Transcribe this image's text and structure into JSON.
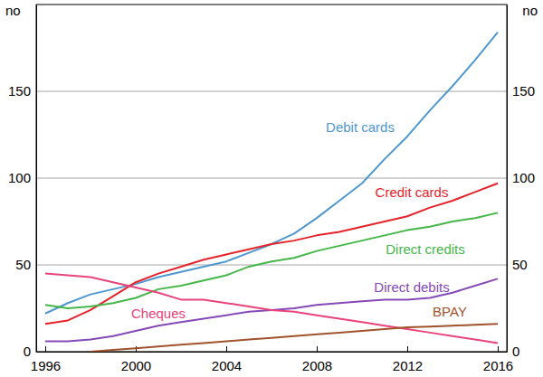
{
  "chart_data": {
    "type": "line",
    "y_label": "no",
    "x": [
      1996,
      1997,
      1998,
      1999,
      2000,
      2001,
      2002,
      2003,
      2004,
      2005,
      2006,
      2007,
      2008,
      2009,
      2010,
      2011,
      2012,
      2013,
      2014,
      2015,
      2016
    ],
    "xlim": [
      1995.6,
      2016.4
    ],
    "xticks": [
      1996,
      2000,
      2004,
      2008,
      2012,
      2016
    ],
    "ylim": [
      0,
      200
    ],
    "yticks": [
      0,
      50,
      100,
      150
    ],
    "grid": true,
    "series": [
      {
        "name": "Debit cards",
        "color": "#4f97cf",
        "values": [
          22,
          28,
          33,
          36,
          39,
          43,
          46,
          49,
          52,
          57,
          62,
          68,
          77,
          87,
          97,
          111,
          124,
          139,
          153,
          168,
          184
        ]
      },
      {
        "name": "Credit cards",
        "color": "#e6232b",
        "values": [
          16,
          18,
          24,
          32,
          40,
          45,
          49,
          53,
          56,
          59,
          62,
          64,
          67,
          69,
          72,
          75,
          78,
          83,
          87,
          92,
          97
        ]
      },
      {
        "name": "Direct credits",
        "color": "#45b649",
        "values": [
          27,
          25,
          26,
          28,
          31,
          36,
          38,
          41,
          44,
          49,
          52,
          54,
          58,
          61,
          64,
          67,
          70,
          72,
          75,
          77,
          80
        ]
      },
      {
        "name": "Direct debits",
        "color": "#8649b8",
        "values": [
          6,
          6,
          7,
          9,
          12,
          15,
          17,
          19,
          21,
          23,
          24,
          25,
          27,
          28,
          29,
          30,
          30,
          31,
          34,
          38,
          42
        ]
      },
      {
        "name": "Cheques",
        "color": "#e8437b",
        "values": [
          45,
          44,
          43,
          40,
          37,
          34,
          30,
          30,
          28,
          26,
          24,
          23,
          21,
          19,
          17,
          15,
          13,
          11,
          9,
          7,
          5
        ]
      },
      {
        "name": "BPAY",
        "color": "#a0522d",
        "values": [
          null,
          null,
          0,
          1,
          2,
          3,
          4,
          5,
          6,
          7,
          8,
          9,
          10,
          11,
          12,
          13,
          14,
          14.5,
          15,
          15.5,
          16
        ]
      }
    ]
  }
}
